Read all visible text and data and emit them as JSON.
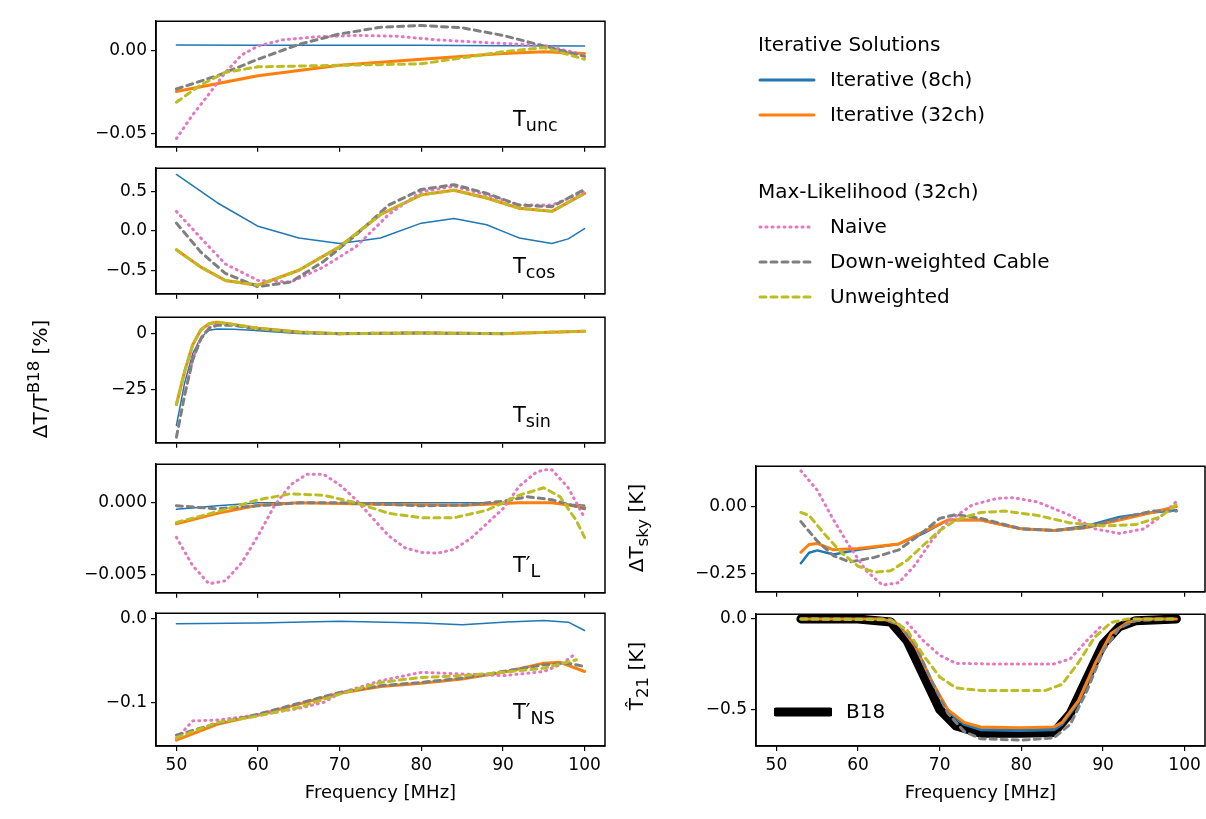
{
  "chart_data": [
    {
      "type": "line",
      "annotations": [
        "T$_{unc}$"
      ],
      "legend": "right",
      "legend_title": "Iterative Solutions",
      "xlim": [
        47.5,
        102.5
      ],
      "xticks": [
        50,
        60,
        70,
        80,
        90,
        100
      ],
      "ylim": [
        -0.058,
        0.018
      ],
      "yticks": [
        {
          "value": -0.05,
          "label": "−0.05"
        },
        {
          "value": 0,
          "label": "0.00"
        }
      ],
      "tick_labels": "y",
      "series": [
        {
          "name": "Iterative (8ch)",
          "color": "#1f77b4",
          "line_style": "solid",
          "x": [
            50,
            60,
            70,
            80,
            90,
            100
          ],
          "values": [
            0.0036,
            0.0035,
            0.0035,
            0.0034,
            0.0032,
            0.003
          ]
        },
        {
          "name": "Iterative (32ch)",
          "color": "#ff7f0e",
          "line_style": "solid",
          "x": [
            50,
            60,
            70,
            80,
            90,
            95,
            100
          ],
          "values": [
            -0.0245,
            -0.015,
            -0.0087,
            -0.005,
            -0.0015,
            -0.0005,
            -0.0015
          ]
        },
        {
          "color": "#e377c2",
          "line_style": "dotted",
          "x": [
            50,
            52,
            54,
            56,
            58,
            60,
            63,
            67,
            72,
            77,
            82,
            90,
            95,
            100
          ],
          "values": [
            -0.053,
            -0.0386,
            -0.026,
            -0.013,
            -0.0024,
            0.003,
            0.0067,
            0.0085,
            0.0094,
            0.0089,
            0.0067,
            0.0045,
            0.0034,
            -0.0024
          ]
        },
        {
          "color": "#7f7f7f",
          "line_style": "dashed",
          "x": [
            50,
            55,
            60,
            65,
            70,
            75,
            80,
            85,
            90,
            95,
            100
          ],
          "values": [
            -0.023,
            -0.015,
            -0.005,
            0.004,
            0.0103,
            0.0143,
            0.0154,
            0.014,
            0.0094,
            0.003,
            -0.0033
          ]
        },
        {
          "color": "#bcbd22",
          "line_style": "dashed",
          "x": [
            50,
            53,
            56,
            60,
            70,
            80,
            90,
            95,
            100
          ],
          "values": [
            -0.031,
            -0.0205,
            -0.013,
            -0.0096,
            -0.0087,
            -0.0078,
            -0.0005,
            0.002,
            -0.005
          ]
        }
      ]
    },
    {
      "type": "line",
      "annotations": [
        "T$_{cos}$"
      ],
      "legend": "right",
      "legend_title": "Max-Likelihood (32ch)",
      "xlim": [
        47.5,
        102.5
      ],
      "xticks": [
        50,
        60,
        70,
        80,
        90,
        100
      ],
      "ylim": [
        -0.8,
        0.8
      ],
      "yticks": [
        {
          "value": -0.5,
          "label": "−0.5"
        },
        {
          "value": 0,
          "label": "0.0"
        },
        0.5
      ],
      "tick_labels": "y",
      "series": [
        {
          "color": "#1f77b4",
          "line_style": "solid",
          "x": [
            50,
            55,
            60,
            65,
            70,
            75,
            80,
            84,
            88,
            92,
            96,
            98,
            100
          ],
          "values": [
            0.72,
            0.36,
            0.06,
            -0.09,
            -0.16,
            -0.09,
            0.1,
            0.16,
            0.08,
            -0.09,
            -0.16,
            -0.1,
            0.03
          ]
        },
        {
          "color": "#ff7f0e",
          "line_style": "solid",
          "x": [
            50,
            53,
            56,
            60,
            65,
            70,
            75,
            80,
            84,
            88,
            92,
            96,
            100
          ],
          "values": [
            -0.24,
            -0.46,
            -0.63,
            -0.69,
            -0.5,
            -0.2,
            0.21,
            0.46,
            0.52,
            0.42,
            0.29,
            0.25,
            0.48
          ]
        },
        {
          "name": "Naive",
          "color": "#e377c2",
          "line_style": "dotted",
          "x": [
            50,
            53,
            56,
            60,
            64,
            68,
            72,
            76,
            80,
            84,
            88,
            92,
            96,
            100
          ],
          "values": [
            0.25,
            -0.09,
            -0.42,
            -0.63,
            -0.65,
            -0.46,
            -0.2,
            0.21,
            0.5,
            0.57,
            0.46,
            0.33,
            0.33,
            0.5
          ]
        },
        {
          "name": "Down-weighted Cable",
          "color": "#7f7f7f",
          "line_style": "dashed",
          "x": [
            50,
            53,
            56,
            60,
            64,
            68,
            72,
            76,
            80,
            84,
            88,
            92,
            96,
            100
          ],
          "values": [
            0.1,
            -0.27,
            -0.54,
            -0.71,
            -0.65,
            -0.39,
            -0.05,
            0.33,
            0.53,
            0.59,
            0.48,
            0.33,
            0.31,
            0.53
          ]
        },
        {
          "name": "Unweighted",
          "color": "#bcbd22",
          "line_style": "dashed",
          "x": [
            50,
            53,
            56,
            60,
            65,
            70,
            75,
            80,
            84,
            88,
            92,
            96,
            100
          ],
          "values": [
            -0.24,
            -0.46,
            -0.63,
            -0.69,
            -0.5,
            -0.2,
            0.21,
            0.46,
            0.52,
            0.42,
            0.29,
            0.25,
            0.48
          ]
        }
      ]
    },
    {
      "type": "line",
      "annotations": [
        "T$_{sin}$"
      ],
      "ylabel": "ΔT/T$^{B18}$ [%]",
      "xlim": [
        47.5,
        102.5
      ],
      "xticks": [
        50,
        60,
        70,
        80,
        90,
        100
      ],
      "ylim": [
        -48.5,
        7.3
      ],
      "yticks": [
        {
          "value": -25,
          "label": "−25"
        },
        0
      ],
      "tick_labels": "y",
      "series": [
        {
          "color": "#1f77b4",
          "line_style": "solid",
          "x": [
            50,
            51,
            52,
            53,
            54,
            55,
            57,
            60,
            65,
            70
          ],
          "values": [
            -40.8,
            -22,
            -8.9,
            -1.6,
            1.5,
            2.1,
            2,
            1.3,
            0.1,
            0
          ]
        },
        {
          "color": "#ff7f0e",
          "line_style": "solid",
          "x": [
            50,
            51,
            52,
            53,
            54,
            55,
            57,
            60,
            65,
            70,
            80,
            90,
            100
          ],
          "values": [
            -31.5,
            -16.9,
            -4.9,
            1.7,
            4.4,
            5.1,
            4.1,
            2.4,
            0.7,
            0,
            0.3,
            0,
            1.1
          ]
        },
        {
          "color": "#e377c2",
          "line_style": "dotted",
          "x": [
            51,
            52,
            53,
            54,
            55
          ],
          "values": [
            -27,
            -11.2,
            -2,
            2.6,
            3.9
          ]
        },
        {
          "color": "#7f7f7f",
          "line_style": "dashed",
          "x": [
            50,
            51,
            52,
            53,
            54,
            55,
            57,
            60,
            65,
            70,
            80,
            90
          ],
          "values": [
            -46,
            -27.5,
            -11.6,
            -2.3,
            2.4,
            3.7,
            3.7,
            2,
            0.4,
            0,
            0.3,
            0
          ]
        },
        {
          "color": "#bcbd22",
          "line_style": "dashed",
          "x": [
            50,
            51,
            52,
            53,
            54,
            55,
            57,
            60,
            65,
            70,
            80,
            90,
            100
          ],
          "values": [
            -31.5,
            -16.9,
            -4.9,
            1.7,
            4.4,
            5.1,
            4.1,
            2.4,
            0.7,
            0,
            0.3,
            0,
            1.1
          ]
        }
      ]
    },
    {
      "type": "line",
      "annotations": [
        "T′$_{L}$"
      ],
      "xlim": [
        47.5,
        102.5
      ],
      "xticks": [
        50,
        60,
        70,
        80,
        90,
        100
      ],
      "ylim": [
        -0.0063,
        0.0027
      ],
      "yticks": [
        {
          "value": -0.005,
          "label": "−0.005"
        },
        {
          "value": 0,
          "label": "0.000"
        }
      ],
      "tick_labels": "y",
      "series": [
        {
          "color": "#1f77b4",
          "line_style": "solid",
          "x": [
            50,
            55,
            60,
            70,
            80,
            90,
            95,
            100
          ],
          "values": [
            -0.00046,
            -0.00021,
            0,
            0,
            0,
            0,
            0,
            -0.00017
          ]
        },
        {
          "color": "#ff7f0e",
          "line_style": "solid",
          "x": [
            50,
            55,
            60,
            65,
            75,
            85,
            92,
            96,
            100
          ],
          "values": [
            -0.00147,
            -0.00074,
            -0.00017,
            0,
            -0.0001,
            -0.00017,
            0,
            0,
            -0.00032
          ]
        },
        {
          "color": "#e377c2",
          "line_style": "dotted",
          "x": [
            50,
            52,
            54,
            56,
            58,
            60,
            62,
            64,
            66,
            68,
            70,
            72,
            74,
            76,
            78,
            80,
            82,
            84,
            86,
            88,
            90,
            92,
            94,
            95,
            96,
            98,
            100
          ],
          "values": [
            -0.00242,
            -0.00441,
            -0.00567,
            -0.00546,
            -0.0042,
            -0.00231,
            -0.00021,
            0.00126,
            0.002,
            0.002,
            0.00126,
            0.00021,
            -0.00105,
            -0.00231,
            -0.00315,
            -0.00347,
            -0.00353,
            -0.00326,
            -0.00252,
            -0.00147,
            -0.00042,
            0.00116,
            0.0021,
            0.00231,
            0.00231,
            0.00105,
            -0.00105
          ]
        },
        {
          "color": "#7f7f7f",
          "line_style": "dashed",
          "x": [
            50,
            55,
            60,
            65,
            70,
            75,
            80,
            85,
            90,
            93,
            96,
            100
          ],
          "values": [
            -0.00021,
            -0.00042,
            -0.00021,
            0,
            0,
            -0.0001,
            -0.00021,
            -0.00017,
            0.0001,
            0.00042,
            0.00021,
            -0.00042
          ]
        },
        {
          "color": "#bcbd22",
          "line_style": "dashed",
          "x": [
            50,
            55,
            60,
            64,
            68,
            72,
            76,
            80,
            84,
            88,
            92,
            95,
            97,
            99,
            100
          ],
          "values": [
            -0.00137,
            -0.00063,
            0.00021,
            0.00063,
            0.00053,
            0,
            -0.00074,
            -0.00105,
            -0.00105,
            -0.00053,
            0.00053,
            0.00105,
            0.00042,
            -0.00126,
            -0.00242
          ]
        }
      ]
    },
    {
      "type": "line",
      "annotations": [
        "T′$_{NS}$"
      ],
      "xlabel": "Frequency [MHz]",
      "xlim": [
        47.5,
        102.5
      ],
      "xticks": [
        50,
        60,
        70,
        80,
        90,
        100
      ],
      "ylim": [
        -0.152,
        0.0067
      ],
      "yticks": [
        {
          "value": -0.1,
          "label": "−0.1"
        },
        {
          "value": 0,
          "label": "0.0"
        }
      ],
      "series": [
        {
          "color": "#1f77b4",
          "line_style": "solid",
          "x": [
            50,
            60,
            70,
            80,
            85,
            90,
            95,
            98,
            100
          ],
          "values": [
            -0.006,
            -0.005,
            -0.003,
            -0.005,
            -0.007,
            -0.004,
            -0.002,
            -0.004,
            -0.014
          ]
        },
        {
          "color": "#ff7f0e",
          "line_style": "solid",
          "x": [
            50,
            55,
            60,
            65,
            70,
            75,
            80,
            85,
            90,
            95,
            97,
            100
          ],
          "values": [
            -0.145,
            -0.126,
            -0.115,
            -0.102,
            -0.089,
            -0.081,
            -0.077,
            -0.072,
            -0.064,
            -0.053,
            -0.052,
            -0.063
          ]
        },
        {
          "color": "#e377c2",
          "line_style": "dotted",
          "x": [
            50,
            52,
            55,
            60,
            65,
            68,
            70,
            75,
            80,
            85,
            90,
            95,
            97,
            99
          ],
          "values": [
            -0.143,
            -0.122,
            -0.121,
            -0.115,
            -0.107,
            -0.1,
            -0.089,
            -0.074,
            -0.064,
            -0.066,
            -0.068,
            -0.063,
            -0.055,
            -0.041
          ]
        },
        {
          "color": "#7f7f7f",
          "line_style": "dashed",
          "x": [
            50,
            55,
            60,
            65,
            70,
            75,
            80,
            85,
            90,
            95,
            98,
            100
          ],
          "values": [
            -0.139,
            -0.125,
            -0.114,
            -0.101,
            -0.088,
            -0.08,
            -0.076,
            -0.071,
            -0.063,
            -0.055,
            -0.053,
            -0.057
          ]
        },
        {
          "color": "#bcbd22",
          "line_style": "dashed",
          "x": [
            50,
            55,
            60,
            65,
            70,
            75,
            80,
            85,
            90,
            95,
            99
          ],
          "values": [
            -0.142,
            -0.124,
            -0.116,
            -0.106,
            -0.09,
            -0.076,
            -0.07,
            -0.068,
            -0.064,
            -0.059,
            -0.049
          ]
        }
      ]
    },
    {
      "type": "line",
      "ylabel": "ΔT$_{sky}$ [K]",
      "xlim": [
        47.5,
        102.5
      ],
      "xticks": [
        50,
        60,
        70,
        80,
        90,
        100
      ],
      "ylim": [
        -0.317,
        0.15
      ],
      "yticks": [
        {
          "value": -0.25,
          "label": "−0.25"
        },
        {
          "value": 0,
          "label": "0.00"
        }
      ],
      "tick_labels": "y",
      "series": [
        {
          "color": "#1f77b4",
          "line_style": "solid",
          "x": [
            53,
            54,
            55,
            57,
            60,
            65,
            68,
            71,
            75,
            80,
            84,
            88,
            92,
            96,
            99
          ],
          "values": [
            -0.211,
            -0.172,
            -0.163,
            -0.178,
            -0.161,
            -0.139,
            -0.1,
            -0.05,
            -0.05,
            -0.083,
            -0.089,
            -0.072,
            -0.039,
            -0.022,
            -0.014
          ]
        },
        {
          "color": "#ff7f0e",
          "line_style": "solid",
          "x": [
            53,
            54,
            55,
            57,
            60,
            65,
            68,
            71,
            75,
            80,
            84,
            88,
            92,
            96,
            99
          ],
          "values": [
            -0.17,
            -0.141,
            -0.137,
            -0.161,
            -0.156,
            -0.139,
            -0.094,
            -0.05,
            -0.05,
            -0.083,
            -0.089,
            -0.078,
            -0.05,
            -0.022,
            0
          ]
        },
        {
          "color": "#e377c2",
          "line_style": "dotted",
          "x": [
            53,
            55,
            57,
            59,
            61,
            63,
            65,
            67,
            69,
            71,
            74,
            77,
            79,
            82,
            86,
            89,
            92,
            95,
            97,
            99
          ],
          "values": [
            0.133,
            0.061,
            -0.05,
            -0.15,
            -0.239,
            -0.292,
            -0.283,
            -0.217,
            -0.128,
            -0.056,
            0.006,
            0.03,
            0.033,
            0.017,
            -0.033,
            -0.083,
            -0.1,
            -0.083,
            -0.039,
            0.019
          ]
        },
        {
          "color": "#7f7f7f",
          "line_style": "dashed",
          "x": [
            53,
            55,
            57,
            59,
            62,
            65,
            68,
            70,
            72,
            75,
            80,
            84,
            88,
            92,
            96,
            99
          ],
          "values": [
            -0.056,
            -0.128,
            -0.183,
            -0.206,
            -0.189,
            -0.161,
            -0.094,
            -0.044,
            -0.03,
            -0.044,
            -0.083,
            -0.089,
            -0.078,
            -0.044,
            -0.017,
            -0.017
          ]
        },
        {
          "color": "#bcbd22",
          "line_style": "dashed",
          "x": [
            53,
            54,
            56,
            58,
            60,
            62,
            64,
            66,
            68,
            70,
            72,
            75,
            78,
            82,
            86,
            90,
            94,
            97,
            99
          ],
          "values": [
            -0.022,
            -0.033,
            -0.106,
            -0.172,
            -0.222,
            -0.244,
            -0.239,
            -0.2,
            -0.144,
            -0.089,
            -0.05,
            -0.022,
            -0.017,
            -0.033,
            -0.061,
            -0.072,
            -0.067,
            -0.039,
            0.008
          ]
        }
      ]
    },
    {
      "type": "line",
      "ylabel": "T̂$_{21}$ [K]",
      "xlabel": "Frequency [MHz]",
      "legend": "bottom left",
      "xlim": [
        47.5,
        102.5
      ],
      "xticks": [
        50,
        60,
        70,
        80,
        90,
        100
      ],
      "ylim": [
        -0.7,
        0.026
      ],
      "yticks": [
        {
          "value": -0.5,
          "label": "−0.5"
        },
        {
          "value": 0,
          "label": "0.0"
        }
      ],
      "series": [
        {
          "name": "B18",
          "color": "#000000",
          "line_style": "solid",
          "x": [
            53,
            60,
            64,
            66,
            68,
            70,
            72,
            75,
            80,
            84,
            86,
            88,
            90,
            92,
            94,
            99
          ],
          "values": [
            0,
            0,
            -0.017,
            -0.12,
            -0.31,
            -0.5,
            -0.59,
            -0.63,
            -0.63,
            -0.625,
            -0.52,
            -0.33,
            -0.14,
            -0.043,
            -0.01,
            0
          ]
        },
        {
          "color": "#1f77b4",
          "line_style": "solid",
          "x": [
            71,
            73,
            75,
            80,
            84,
            85,
            87,
            89
          ],
          "values": [
            -0.51,
            -0.58,
            -0.61,
            -0.615,
            -0.61,
            -0.58,
            -0.46,
            -0.26
          ]
        },
        {
          "color": "#ff7f0e",
          "line_style": "solid",
          "x": [
            53,
            63,
            65,
            67,
            69,
            71,
            73,
            75,
            80,
            84,
            85,
            87,
            89,
            91,
            93,
            95,
            99
          ],
          "values": [
            0,
            0,
            -0.03,
            -0.15,
            -0.34,
            -0.5,
            -0.57,
            -0.595,
            -0.6,
            -0.595,
            -0.57,
            -0.45,
            -0.25,
            -0.08,
            -0.02,
            0,
            0
          ]
        },
        {
          "color": "#e377c2",
          "line_style": "dotted",
          "x": [
            66,
            68,
            70,
            72,
            76,
            84,
            86,
            88,
            90
          ],
          "values": [
            -0.02,
            -0.12,
            -0.2,
            -0.245,
            -0.248,
            -0.248,
            -0.22,
            -0.12,
            -0.03
          ]
        },
        {
          "color": "#7f7f7f",
          "line_style": "dashed",
          "x": [
            53,
            63,
            65,
            67,
            69,
            71,
            73,
            75,
            80,
            84,
            86,
            88,
            90,
            92,
            94,
            99
          ],
          "values": [
            0,
            0,
            -0.03,
            -0.14,
            -0.34,
            -0.52,
            -0.62,
            -0.66,
            -0.668,
            -0.655,
            -0.58,
            -0.4,
            -0.18,
            -0.05,
            -0.01,
            0
          ]
        },
        {
          "color": "#bcbd22",
          "line_style": "dashed",
          "x": [
            53,
            64,
            66,
            68,
            70,
            72,
            75,
            83,
            85,
            87,
            89,
            91,
            93,
            99
          ],
          "values": [
            0,
            -0.005,
            -0.06,
            -0.2,
            -0.32,
            -0.38,
            -0.394,
            -0.394,
            -0.36,
            -0.24,
            -0.1,
            -0.02,
            0,
            0
          ]
        }
      ]
    }
  ]
}
